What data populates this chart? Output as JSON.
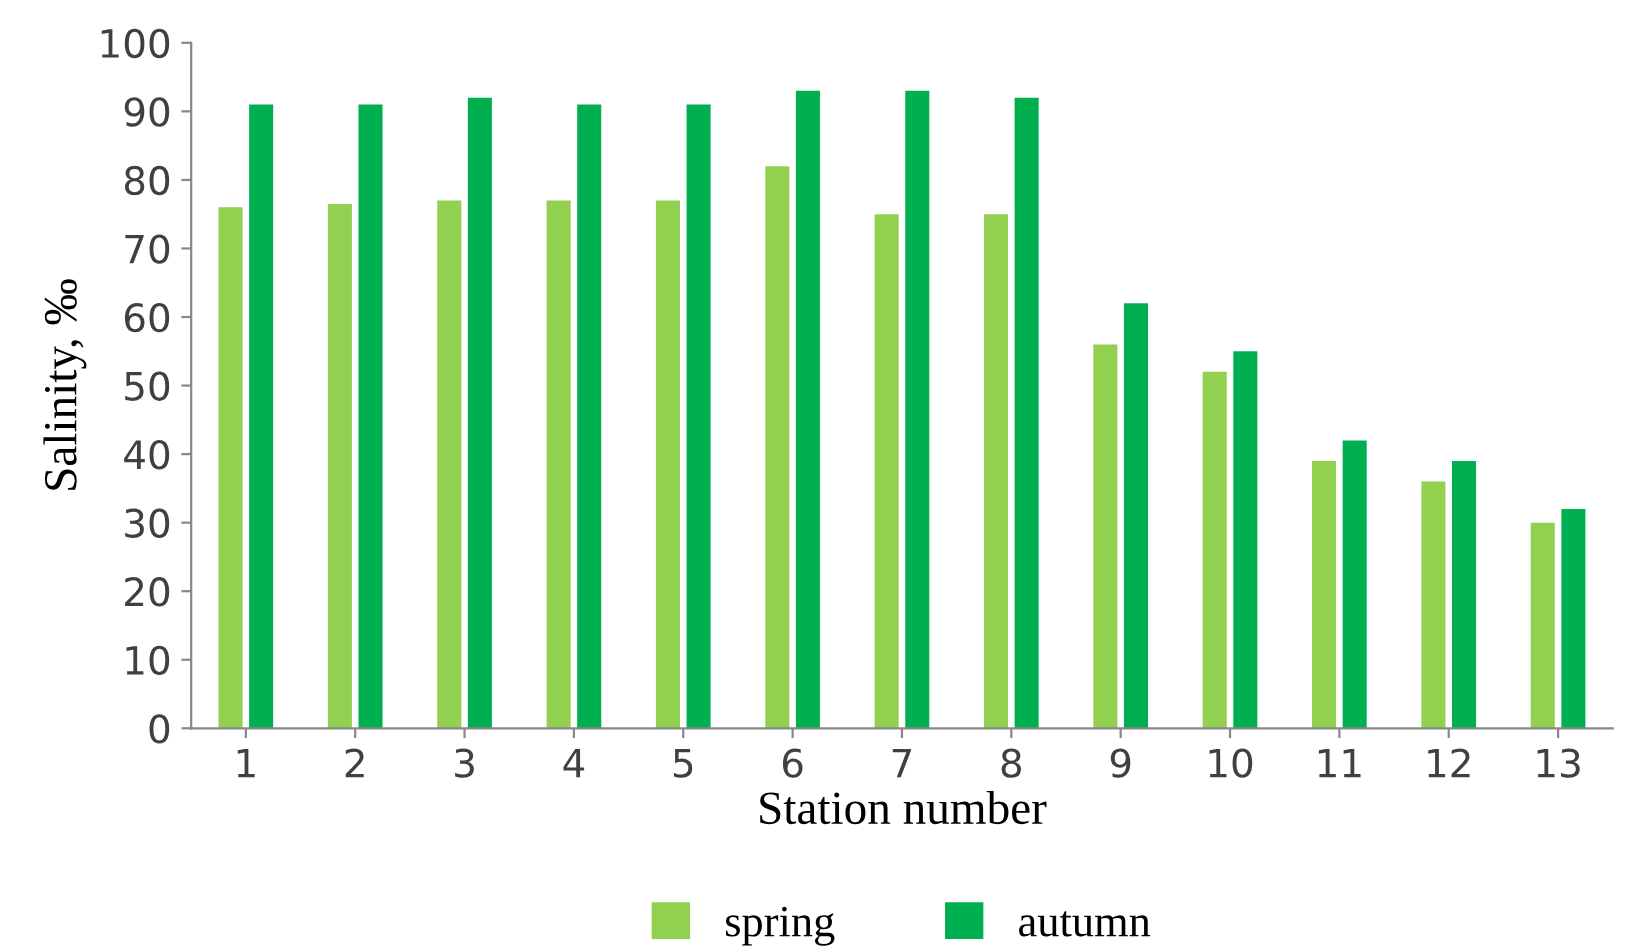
{
  "chart_data": {
    "type": "bar",
    "xlabel": "Station number",
    "ylabel": "Salinity, ‰",
    "categories": [
      "1",
      "2",
      "3",
      "4",
      "5",
      "6",
      "7",
      "8",
      "9",
      "10",
      "11",
      "12",
      "13"
    ],
    "series": [
      {
        "name": "spring",
        "color": "#92d050",
        "values": [
          76,
          76.5,
          77,
          77,
          77,
          82,
          75,
          75,
          56,
          52,
          39,
          36,
          30
        ]
      },
      {
        "name": "autumn",
        "color": "#00b050",
        "values": [
          91,
          91,
          92,
          91,
          91,
          93,
          93,
          92,
          62,
          55,
          42,
          39,
          32
        ]
      }
    ],
    "ylim": [
      0,
      100
    ],
    "yticks": [
      0,
      10,
      20,
      30,
      40,
      50,
      60,
      70,
      80,
      90,
      100
    ],
    "grid": false,
    "legend": "bottom"
  }
}
